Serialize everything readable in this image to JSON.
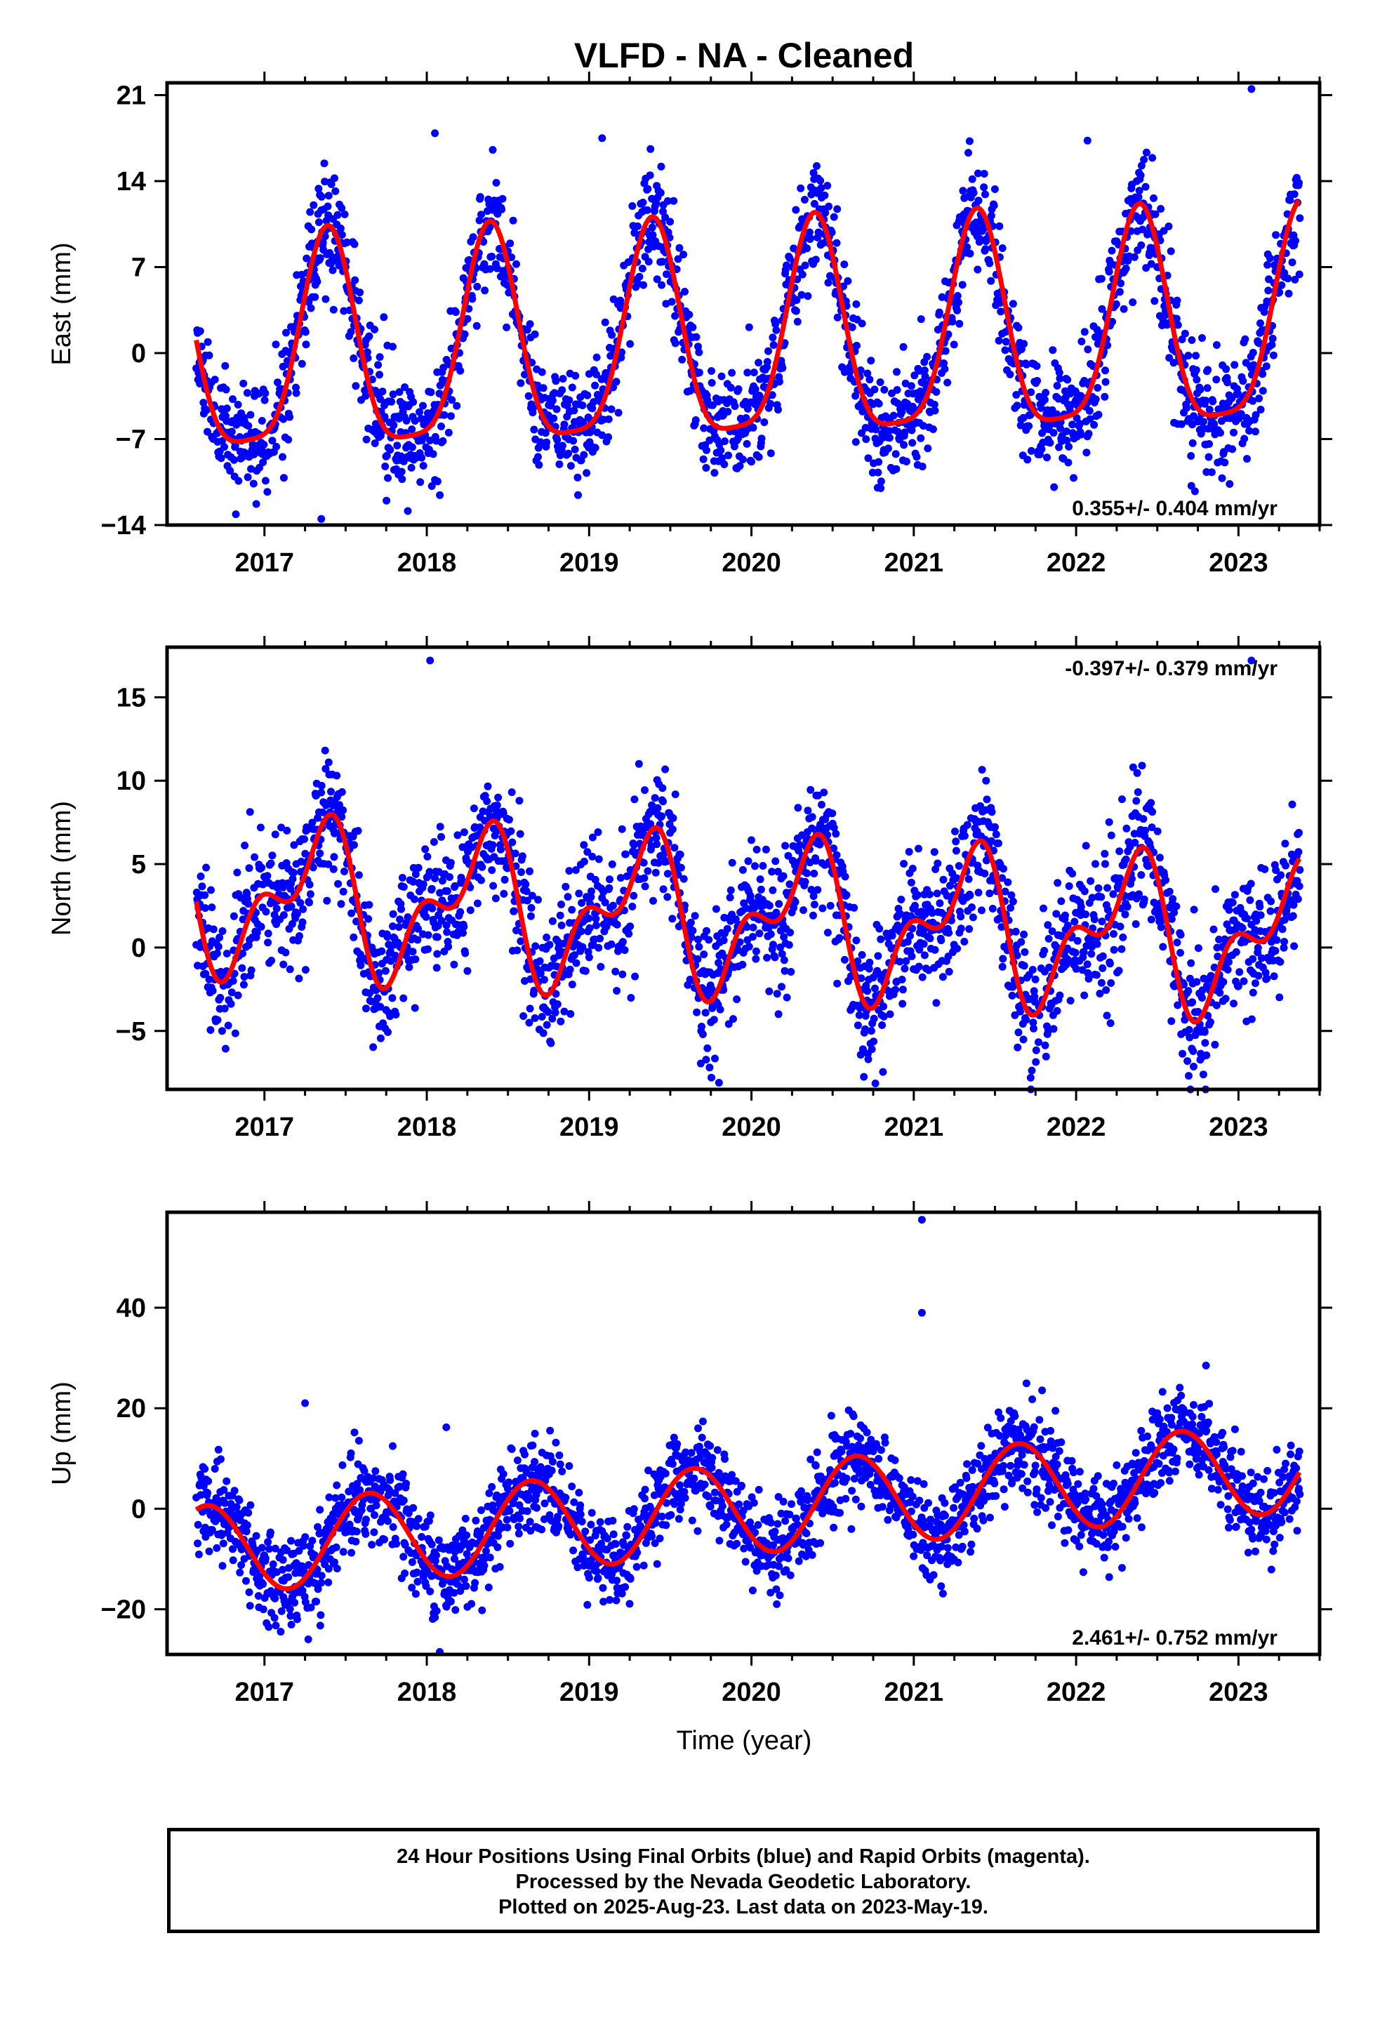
{
  "title": "VLFD  - NA - Cleaned",
  "xlabel": "Time (year)",
  "footer": {
    "line1": "24 Hour Positions Using Final Orbits (blue) and Rapid Orbits (magenta).",
    "line2": "Processed by the Nevada Geodetic Laboratory.",
    "line3": "Plotted on 2025-Aug-23. Last data on 2023-May-19."
  },
  "colors": {
    "points": "#0000ff",
    "fit": "#ff0000",
    "axes": "#000000"
  },
  "chart_data": [
    {
      "type": "scatter",
      "name": "east",
      "ylabel": "East (mm)",
      "rate_label": "0.355+/- 0.404 mm/yr",
      "rate_position": "bottom-right",
      "xlim": [
        2016.4,
        2023.5
      ],
      "ylim": [
        -14,
        22
      ],
      "yticks": [
        -14,
        -7,
        0,
        7,
        14,
        21
      ],
      "xticks": [
        2017,
        2018,
        2019,
        2020,
        2021,
        2022,
        2023
      ],
      "time_span": [
        2016.58,
        2023.38
      ],
      "fit": {
        "mean": 0.6,
        "slope": 0.355,
        "annual_cos": -6.6,
        "annual_sin": 5.6,
        "semiannual_cos": 0.5,
        "semiannual_sin": -2.0,
        "reference_epoch": 2020.0
      },
      "scatter_sigma": 2.4,
      "outliers": [
        [
          2017.35,
          -13.5
        ],
        [
          2023.08,
          21.5
        ],
        [
          2018.05,
          17.9
        ],
        [
          2019.08,
          17.5
        ],
        [
          2022.07,
          17.3
        ]
      ],
      "grid": false
    },
    {
      "type": "scatter",
      "name": "north",
      "ylabel": "North (mm)",
      "rate_label": "-0.397+/- 0.379 mm/yr",
      "rate_position": "top-right",
      "xlim": [
        2016.4,
        2023.5
      ],
      "ylim": [
        -8.5,
        18
      ],
      "yticks": [
        -5,
        0,
        5,
        10,
        15
      ],
      "xticks": [
        2017,
        2018,
        2019,
        2020,
        2021,
        2022,
        2023
      ],
      "time_span": [
        2016.58,
        2023.38
      ],
      "fit": {
        "mean": 1.8,
        "slope": -0.397,
        "annual_cos": -1.6,
        "annual_sin": 3.3,
        "semiannual_cos": 1.8,
        "semiannual_sin": -1.4,
        "reference_epoch": 2020.0
      },
      "scatter_sigma": 2.0,
      "outliers": [
        [
          2018.02,
          17.2
        ],
        [
          2023.08,
          17.2
        ],
        [
          2019.8,
          -8.1
        ],
        [
          2021.72,
          -7.8
        ]
      ],
      "grid": false
    },
    {
      "type": "scatter",
      "name": "up",
      "ylabel": "Up (mm)",
      "rate_label": "2.461+/- 0.752 mm/yr",
      "rate_position": "bottom-right",
      "xlim": [
        2016.4,
        2023.5
      ],
      "ylim": [
        -29,
        59
      ],
      "yticks": [
        -20,
        0,
        20,
        40
      ],
      "xticks": [
        2017,
        2018,
        2019,
        2020,
        2021,
        2022,
        2023
      ],
      "time_span": [
        2016.58,
        2023.38
      ],
      "fit": {
        "mean": 0.0,
        "slope": 2.461,
        "annual_cos": -5.5,
        "annual_sin": -7.0,
        "semiannual_cos": 0.0,
        "semiannual_sin": 0.0,
        "reference_epoch": 2020.0
      },
      "scatter_sigma": 4.5,
      "outliers": [
        [
          2021.05,
          57.5
        ],
        [
          2021.05,
          39.0
        ],
        [
          2017.25,
          21.0
        ],
        [
          2018.12,
          16.2
        ],
        [
          2022.8,
          28.5
        ],
        [
          2018.08,
          -28.5
        ],
        [
          2017.27,
          -26.0
        ]
      ],
      "grid": false
    }
  ]
}
